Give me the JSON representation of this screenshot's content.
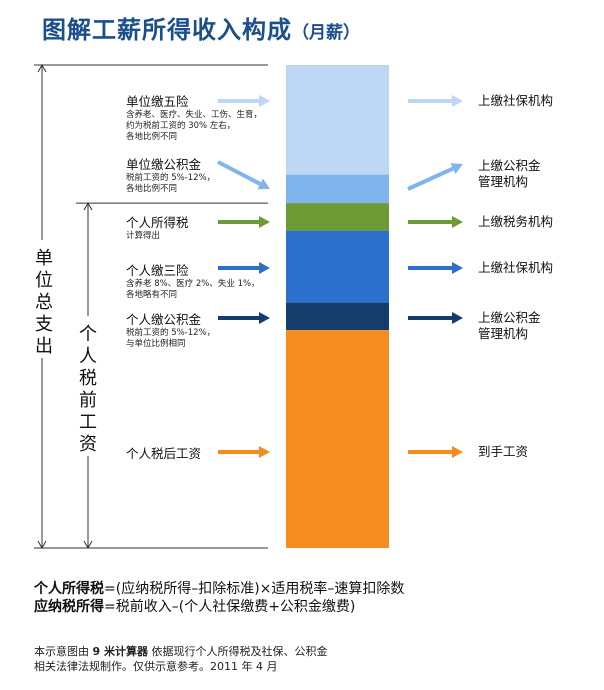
{
  "title": {
    "main": "图解工薪所得收入构成",
    "sub": "（月薪）"
  },
  "colors": {
    "five_insurance": "#bcd6f3",
    "company_fund": "#7fb4ec",
    "tax": "#6e9a35",
    "personal_three": "#2c6fcc",
    "personal_fund": "#153d6b",
    "after_tax": "#f58c1f"
  },
  "vertical_labels": {
    "company_total": "单位总支出",
    "pretax": "个人税前工资"
  },
  "segments": [
    {
      "name": "单位缴五险",
      "desc": "含养老、医疗、失业、工伤、生育，\n约为税前工资的 30% 左右，\n各地比例不同",
      "dest": "上缴社保机构",
      "share": 0.227,
      "color": "#bcd6f3"
    },
    {
      "name": "单位缴公积金",
      "desc": "税前工资的 5%-12%，\n各地比例不同",
      "dest": "上缴公积金\n管理机构",
      "share": 0.059,
      "color": "#7fb4ec"
    },
    {
      "name": "个人所得税",
      "desc": "计算得出",
      "dest": "上缴税务机构",
      "share": 0.057,
      "color": "#6e9a35"
    },
    {
      "name": "个人缴三险",
      "desc": "含养老 8%、医疗 2%、失业 1%，\n各地略有不同",
      "dest": "上缴社保机构",
      "share": 0.149,
      "color": "#2c6fcc"
    },
    {
      "name": "个人缴公积金",
      "desc": "税前工资的 5%-12%，\n与单位比例相同",
      "dest": "上缴公积金\n管理机构",
      "share": 0.057,
      "color": "#153d6b"
    },
    {
      "name": "个人税后工资",
      "desc": "",
      "dest": "到手工资",
      "share": 0.451,
      "color": "#f58c1f"
    }
  ],
  "formulas": {
    "f1_term": "个人所得税",
    "f1_body": "=(应纳税所得–扣除标准)×适用税率–速算扣除数",
    "f2_term": "应纳税所得",
    "f2_body": "=税前收入–(个人社保缴费+公积金缴费)"
  },
  "footnote": {
    "prefix": "本示意图由 ",
    "brand": "9 米计算器",
    "line1_rest": " 依据现行个人所得税及社保、公积金",
    "line2": "相关法律法规制作。仅供示意参考。2011 年 4 月"
  }
}
